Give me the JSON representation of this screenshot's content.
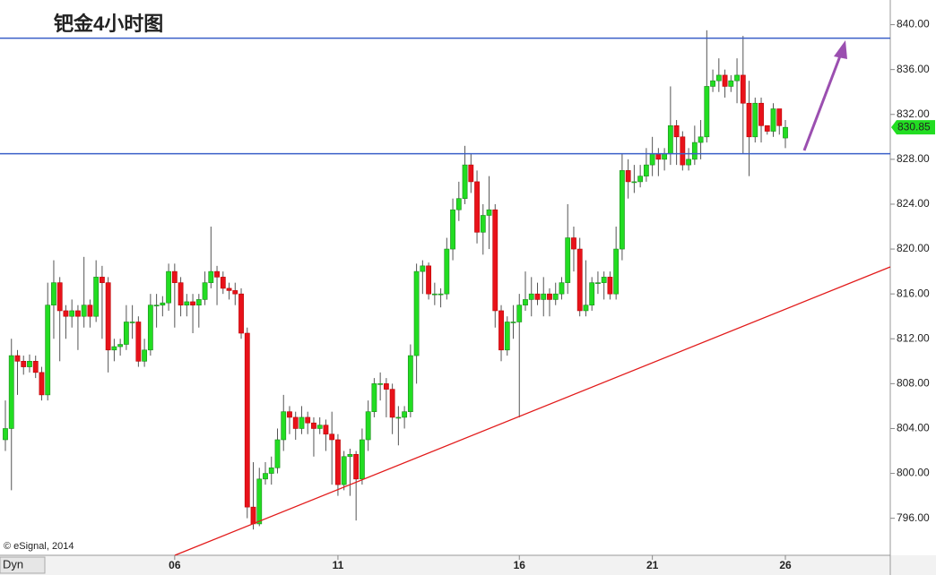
{
  "chart_data": {
    "type": "candlestick",
    "title": "钯金4小时图",
    "categories": [
      null,
      null,
      null,
      null,
      null,
      null,
      null,
      null,
      null,
      null,
      null,
      null,
      null,
      null,
      null,
      null,
      null,
      null,
      null,
      null,
      null,
      null,
      null,
      null,
      null,
      null,
      null,
      null,
      "06",
      null,
      null,
      null,
      null,
      null,
      null,
      null,
      null,
      null,
      null,
      null,
      null,
      null,
      null,
      null,
      null,
      null,
      null,
      null,
      null,
      null,
      null,
      null,
      null,
      null,
      null,
      "11",
      null,
      null,
      null,
      null,
      null,
      null,
      null,
      null,
      null,
      null,
      null,
      null,
      null,
      null,
      null,
      null,
      null,
      null,
      null,
      null,
      null,
      null,
      null,
      null,
      null,
      null,
      null,
      null,
      null,
      "16",
      null,
      null,
      null,
      null,
      null,
      null,
      null,
      null,
      null,
      null,
      null,
      null,
      null,
      null,
      null,
      null,
      null,
      null,
      null,
      null,
      null,
      "21",
      null,
      null,
      null,
      null,
      null,
      null,
      null,
      null,
      null,
      null,
      null,
      null,
      null,
      null,
      null,
      null,
      null,
      null,
      null,
      null,
      null,
      "26"
    ],
    "open": [
      803,
      804,
      810.5,
      810,
      809.5,
      810,
      809,
      807,
      815,
      817,
      814.5,
      814,
      814.5,
      814,
      815,
      814,
      817.5,
      817,
      811,
      811.3,
      811.5,
      813.5,
      813.5,
      810,
      811,
      815,
      815,
      815.2,
      818,
      817,
      815,
      815.3,
      815,
      815.5,
      817,
      818,
      817.5,
      816.5,
      816.3,
      816,
      812.5,
      797,
      795.5,
      799.5,
      800,
      800.5,
      803,
      805.5,
      805,
      804,
      805,
      804.5,
      804,
      804.3,
      803.5,
      803,
      799,
      801.5,
      801.7,
      799.5,
      803,
      805.5,
      808,
      808,
      807.5,
      805,
      805,
      805.5,
      810.5,
      818,
      818.5,
      816,
      816,
      816,
      820,
      823.5,
      824.5,
      827.5,
      826,
      821.5,
      823,
      823.5,
      814.5,
      811,
      813.5,
      813.5,
      815,
      815.5,
      816,
      815.5,
      816,
      815.5,
      816,
      817,
      821,
      820,
      814.5,
      815,
      817,
      817,
      817.5,
      816,
      820,
      827,
      826,
      826,
      826.5,
      827.5,
      828.5,
      828,
      828.5,
      831,
      830,
      827.5,
      828,
      829.5,
      830,
      834.5,
      835,
      835.5,
      834.5,
      835,
      835.5,
      833,
      830,
      833,
      831,
      830.5,
      832.5,
      829.9
    ],
    "high": [
      806.5,
      812,
      811,
      810.5,
      810.6,
      810.5,
      809.5,
      817,
      819,
      817.5,
      815,
      815.5,
      815,
      819.3,
      815.5,
      819,
      818.5,
      817.5,
      812,
      812,
      815,
      815,
      814,
      812,
      816,
      816,
      815.8,
      818.7,
      818.7,
      817.5,
      816,
      816,
      816,
      818,
      822,
      818.5,
      818,
      817,
      817,
      816.5,
      813,
      801,
      800.5,
      801,
      801.5,
      804,
      807,
      806,
      805.5,
      806,
      805.5,
      805,
      805,
      804.8,
      805.5,
      803.5,
      802,
      802.2,
      802,
      804,
      806.5,
      808.5,
      809,
      808.5,
      808,
      806,
      806,
      811.5,
      818.7,
      819,
      818.8,
      817,
      816.5,
      821,
      824.5,
      826,
      829.2,
      828.5,
      827,
      824,
      826.5,
      824,
      815,
      814,
      815,
      816,
      818,
      817.5,
      817,
      817.5,
      816.5,
      817,
      817.5,
      824,
      822,
      821,
      819,
      817.5,
      818,
      818,
      818,
      822,
      828.5,
      828,
      827.5,
      827.5,
      829,
      830,
      829,
      829,
      834.5,
      831.5,
      830.5,
      829,
      831,
      831.5,
      839.5,
      836,
      837,
      836,
      835.5,
      837,
      839,
      835,
      833.5,
      833.5,
      831,
      833,
      832.5,
      831.5
    ],
    "low": [
      802,
      798.5,
      807,
      808.8,
      809,
      808.5,
      806.5,
      806.5,
      812,
      810,
      812,
      813,
      811,
      813,
      813,
      813.5,
      812,
      809,
      810,
      810.5,
      811,
      812,
      809.5,
      809.5,
      810.5,
      813,
      814,
      814.5,
      813,
      814,
      814,
      812.5,
      813,
      815,
      816.5,
      815,
      816,
      815.5,
      815,
      812,
      796,
      795,
      795.3,
      799,
      799,
      800,
      802,
      803.5,
      803,
      803.5,
      803.5,
      801.5,
      803.5,
      802,
      799,
      798,
      798.5,
      798,
      795.8,
      799,
      802,
      805,
      806.5,
      805,
      803.5,
      802.5,
      804,
      805,
      808,
      816,
      815.5,
      815,
      814.8,
      815.5,
      819,
      822.5,
      824,
      825,
      820.5,
      819.5,
      820,
      813,
      810,
      810.5,
      812,
      805,
      814.5,
      814,
      815,
      814,
      814,
      815,
      815.5,
      816,
      818,
      814,
      814,
      814.5,
      816,
      815.5,
      815.5,
      815.5,
      819,
      824.5,
      825,
      825.5,
      826,
      826.5,
      826.5,
      827,
      827.5,
      827.5,
      827,
      827,
      827.5,
      828,
      829.5,
      834,
      834,
      833.5,
      834,
      833,
      828.5,
      826.5,
      829.5,
      829.5,
      830.2,
      830,
      830.2,
      829
    ],
    "close": [
      804,
      810.5,
      810,
      809.5,
      810,
      809,
      807,
      815,
      817,
      814.5,
      814,
      814.5,
      814,
      815,
      814,
      817.5,
      817,
      811,
      811.3,
      811.5,
      813.5,
      813.5,
      810,
      811,
      815,
      815,
      815.2,
      818,
      817,
      815,
      815.3,
      815,
      815.5,
      817,
      818,
      817.5,
      816.5,
      816.3,
      816,
      812.5,
      797,
      795.5,
      799.5,
      800,
      800.5,
      803,
      805.5,
      805,
      804,
      805,
      804.5,
      804,
      804.3,
      803.5,
      803,
      799,
      801.5,
      801.7,
      799.5,
      803,
      805.5,
      808,
      808,
      807.5,
      805,
      805,
      805.5,
      810.5,
      818,
      818.5,
      816,
      816,
      816,
      820,
      823.5,
      824.5,
      827.5,
      826,
      821.5,
      823,
      823.5,
      814.5,
      811,
      813.5,
      813.5,
      815,
      815.5,
      816,
      815.5,
      816,
      815.5,
      816,
      817,
      821,
      820,
      814.5,
      815,
      817,
      817,
      817.5,
      816,
      820,
      827,
      826,
      826,
      826.5,
      827.5,
      828.5,
      828,
      828.5,
      831,
      830,
      827.5,
      828,
      829.5,
      830,
      834.5,
      835,
      835.5,
      834.5,
      835,
      835.5,
      833,
      830,
      833,
      831,
      830.5,
      832.5,
      831,
      830.85
    ],
    "up_color": "#22dd22",
    "down_color": "#e8121a",
    "levels": [
      838.8,
      828.5
    ],
    "level_color": "#3a5fc8",
    "ylim": [
      792.7,
      842.2
    ],
    "yticks": [
      {
        "value": 796,
        "label": "796.00"
      },
      {
        "value": 800,
        "label": "800.00"
      },
      {
        "value": 804,
        "label": "804.00"
      },
      {
        "value": 808,
        "label": "808.00"
      },
      {
        "value": 812,
        "label": "812.00"
      },
      {
        "value": 816,
        "label": "816.00"
      },
      {
        "value": 820,
        "label": "820.00"
      },
      {
        "value": 824,
        "label": "824.00"
      },
      {
        "value": 828,
        "label": "828.00"
      },
      {
        "value": 832,
        "label": "832.00"
      },
      {
        "value": 836,
        "label": "836.00"
      },
      {
        "value": 840,
        "label": "840.00"
      }
    ],
    "credit": "© eSignal, 2014",
    "footer_label": "Dyn"
  }
}
